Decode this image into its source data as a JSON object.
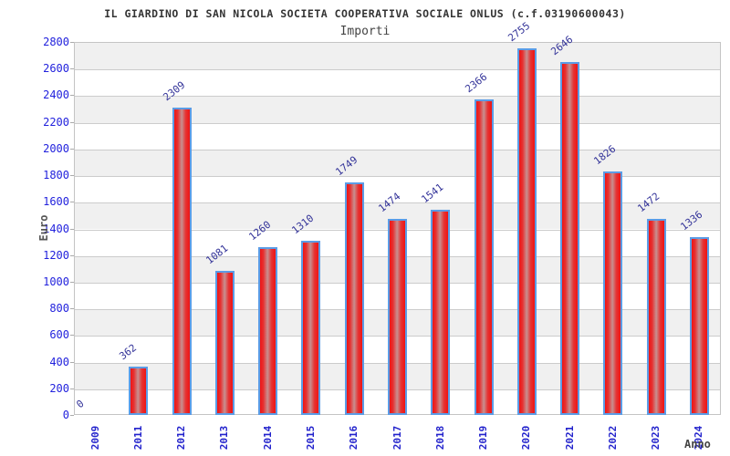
{
  "header": {
    "title": "IL GIARDINO DI SAN NICOLA SOCIETA COOPERATIVA SOCIALE ONLUS (c.f.03190600043)",
    "subtitle": "Importi"
  },
  "chart_data": {
    "type": "bar",
    "title": "IL GIARDINO DI SAN NICOLA SOCIETA COOPERATIVA SOCIALE ONLUS (c.f.03190600043)",
    "subtitle": "Importi",
    "xlabel": "Anno",
    "ylabel": "Euro",
    "categories": [
      "2009",
      "2011",
      "2012",
      "2013",
      "2014",
      "2015",
      "2016",
      "2017",
      "2018",
      "2019",
      "2020",
      "2021",
      "2022",
      "2023",
      "2024"
    ],
    "values": [
      0,
      362,
      2309,
      1081,
      1260,
      1310,
      1749,
      1474,
      1541,
      2366,
      2755,
      2646,
      1826,
      1472,
      1336
    ],
    "ylim": [
      0,
      2800
    ],
    "ytick_step": 200,
    "grid": true,
    "alternating_bands": true,
    "legend": "none"
  },
  "colors": {
    "bar_red": "#ee1414",
    "bar_center_highlight": "#c79090",
    "bar_border_blue": "#5b9ce6",
    "axis_tick_blue": "#2222dd",
    "value_label_navy": "#333399",
    "band_gray": "#f0f0f0",
    "grid_gray": "#cccccc",
    "title_color": "#333333",
    "axis_title_gray": "#555555",
    "background": "#ffffff"
  }
}
